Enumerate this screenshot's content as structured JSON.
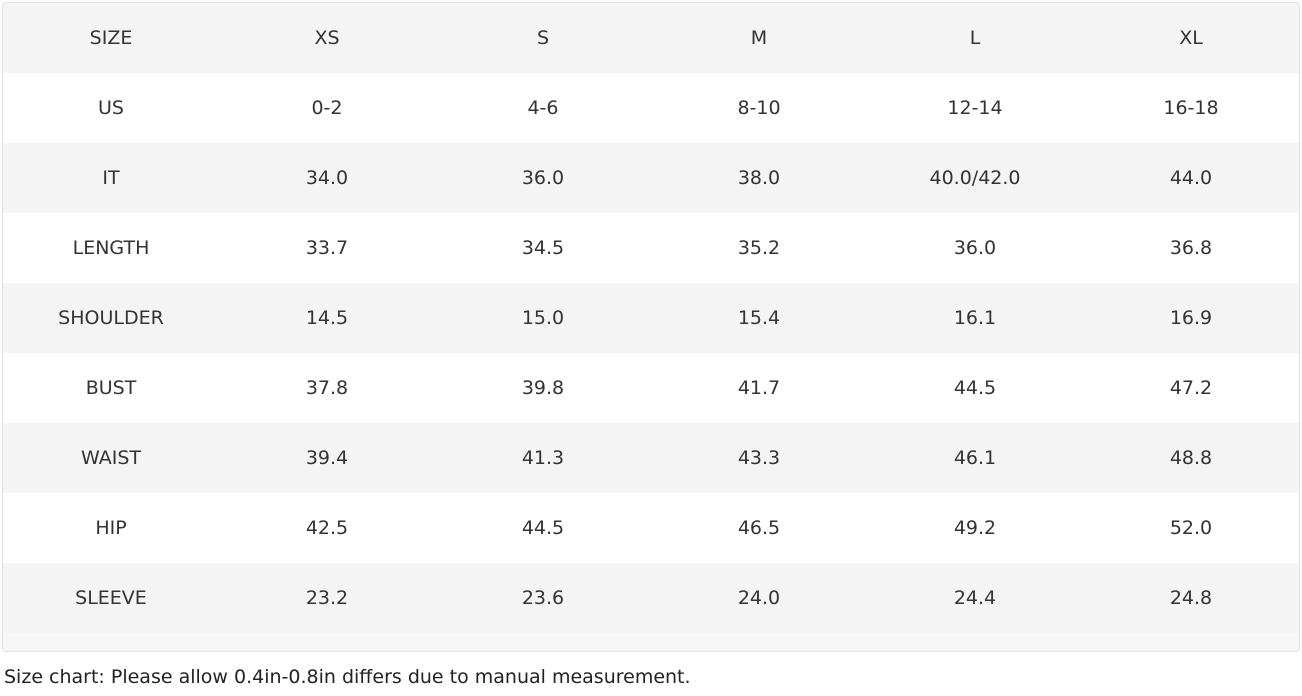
{
  "table": {
    "header": [
      "SIZE",
      "XS",
      "S",
      "M",
      "L",
      "XL"
    ],
    "rows": [
      [
        "US",
        "0-2",
        "4-6",
        "8-10",
        "12-14",
        "16-18"
      ],
      [
        "IT",
        "34.0",
        "36.0",
        "38.0",
        "40.0/42.0",
        "44.0"
      ],
      [
        "LENGTH",
        "33.7",
        "34.5",
        "35.2",
        "36.0",
        "36.8"
      ],
      [
        "SHOULDER",
        "14.5",
        "15.0",
        "15.4",
        "16.1",
        "16.9"
      ],
      [
        "BUST",
        "37.8",
        "39.8",
        "41.7",
        "44.5",
        "47.2"
      ],
      [
        "WAIST",
        "39.4",
        "41.3",
        "43.3",
        "46.1",
        "48.8"
      ],
      [
        "HIP",
        "42.5",
        "44.5",
        "46.5",
        "49.2",
        "52.0"
      ],
      [
        "SLEEVE",
        "23.2",
        "23.6",
        "24.0",
        "24.4",
        "24.8"
      ]
    ]
  },
  "caption": "Size chart: Please allow 0.4in-0.8in differs due to manual measurement."
}
